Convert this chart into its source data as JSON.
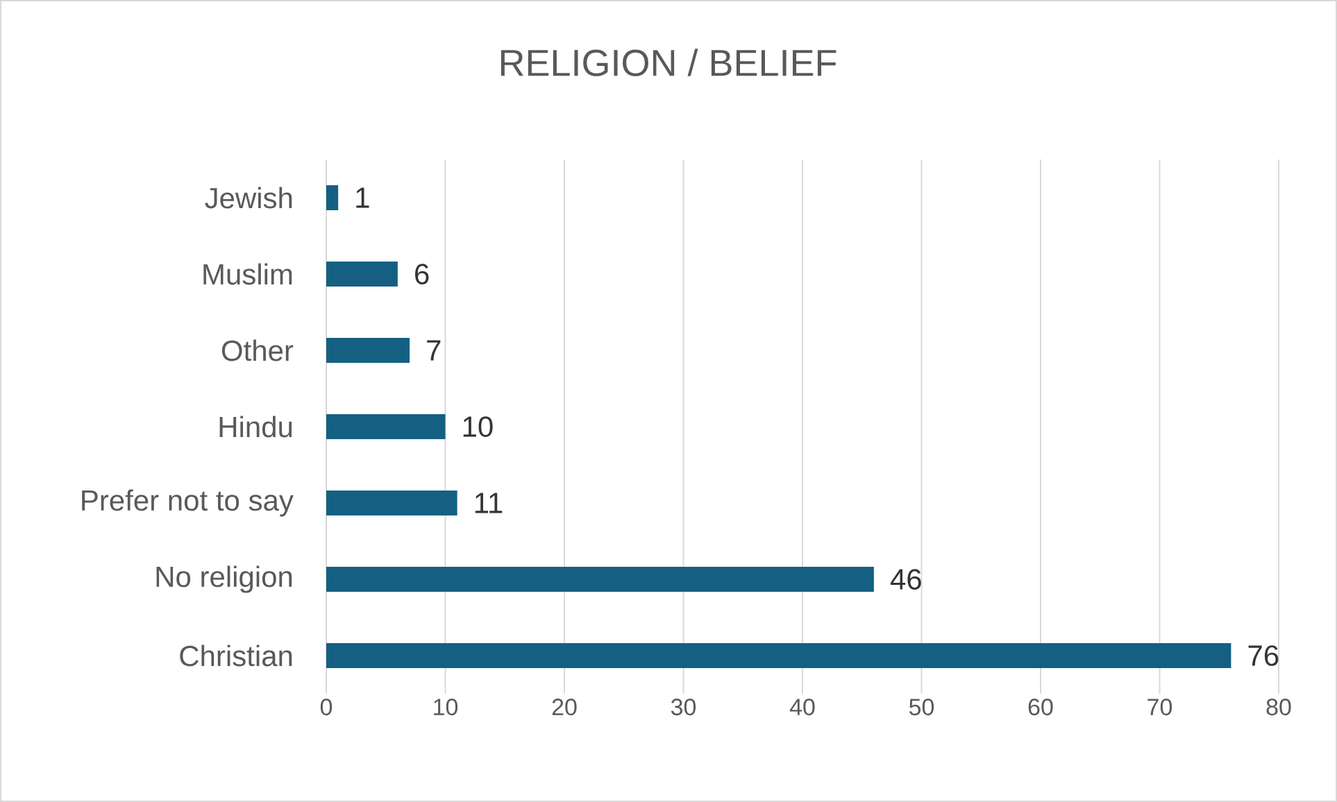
{
  "chart_data": {
    "type": "bar",
    "orientation": "horizontal",
    "title": "RELIGION / BELIEF",
    "categories": [
      "Jewish",
      "Muslim",
      "Other",
      "Hindu",
      "Prefer not to say",
      "No religion",
      "Christian"
    ],
    "values": [
      1,
      6,
      7,
      10,
      11,
      46,
      76
    ],
    "color": "#156082",
    "xlim": [
      0,
      80
    ],
    "xticks": [
      0,
      10,
      20,
      30,
      40,
      50,
      60,
      70,
      80
    ],
    "grid": "x",
    "data_labels": true
  }
}
